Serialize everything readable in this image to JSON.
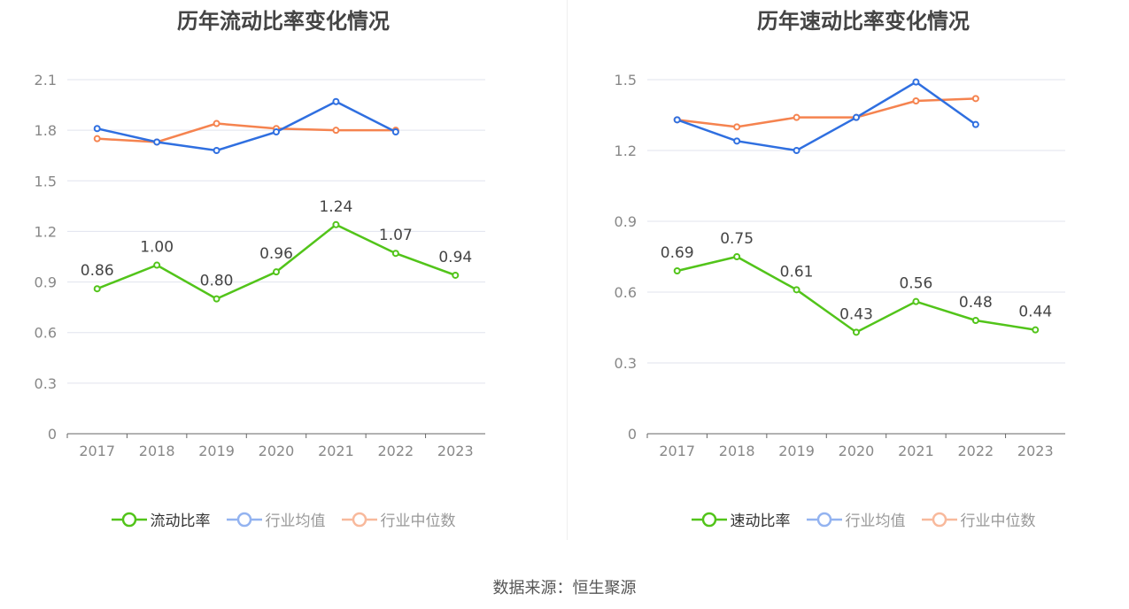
{
  "source": "数据来源：恒生聚源",
  "chart_data": [
    {
      "type": "line",
      "title": "历年流动比率变化情况",
      "categories": [
        "2017",
        "2018",
        "2019",
        "2020",
        "2021",
        "2022",
        "2023"
      ],
      "ylim": [
        0,
        2.1
      ],
      "yticks": [
        "0",
        "0.3",
        "0.6",
        "0.9",
        "1.2",
        "1.5",
        "1.8",
        "2.1"
      ],
      "grid": true,
      "legend": "bottom",
      "series": [
        {
          "name": "流动比率",
          "color": "#52c41a",
          "values": [
            0.86,
            1.0,
            0.8,
            0.96,
            1.24,
            1.07,
            0.94
          ],
          "labels": [
            "0.86",
            "1.00",
            "0.80",
            "0.96",
            "1.24",
            "1.07",
            "0.94"
          ]
        },
        {
          "name": "行业均值",
          "color": "#2f6fe0",
          "values": [
            1.81,
            1.73,
            1.68,
            1.79,
            1.97,
            1.79,
            null
          ]
        },
        {
          "name": "行业中位数",
          "color": "#f5834f",
          "values": [
            1.75,
            1.73,
            1.84,
            1.81,
            1.8,
            1.8,
            null
          ]
        }
      ]
    },
    {
      "type": "line",
      "title": "历年速动比率变化情况",
      "categories": [
        "2017",
        "2018",
        "2019",
        "2020",
        "2021",
        "2022",
        "2023"
      ],
      "ylim": [
        0,
        1.5
      ],
      "yticks": [
        "0",
        "0.3",
        "0.6",
        "0.9",
        "1.2",
        "1.5"
      ],
      "grid": true,
      "legend": "bottom",
      "series": [
        {
          "name": "速动比率",
          "color": "#52c41a",
          "values": [
            0.69,
            0.75,
            0.61,
            0.43,
            0.56,
            0.48,
            0.44
          ],
          "labels": [
            "0.69",
            "0.75",
            "0.61",
            "0.43",
            "0.56",
            "0.48",
            "0.44"
          ]
        },
        {
          "name": "行业均值",
          "color": "#2f6fe0",
          "values": [
            1.33,
            1.24,
            1.2,
            1.34,
            1.49,
            1.31,
            null
          ]
        },
        {
          "name": "行业中位数",
          "color": "#f5834f",
          "values": [
            1.33,
            1.3,
            1.34,
            1.34,
            1.41,
            1.42,
            null
          ]
        }
      ]
    }
  ]
}
